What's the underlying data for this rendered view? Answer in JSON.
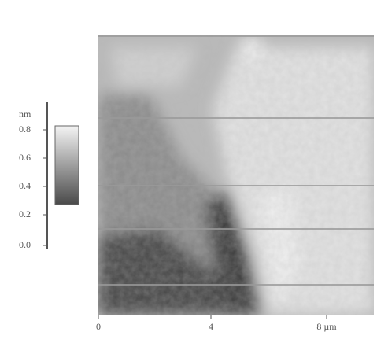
{
  "colorbar": {
    "unit": "nm",
    "ticks": [
      "0.8",
      "0.6",
      "0.4",
      "0.2",
      "0.0"
    ]
  },
  "x_axis": {
    "ticks": [
      "0",
      "4",
      "8 µm"
    ]
  }
}
